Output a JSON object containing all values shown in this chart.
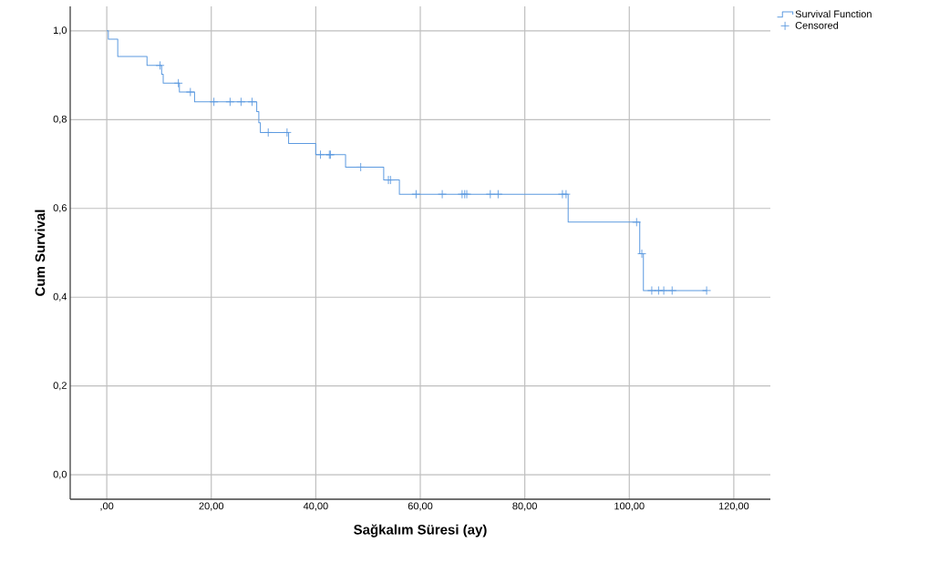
{
  "chart_data": {
    "type": "step",
    "xlabel": "Sağkalım Süresi (ay)",
    "ylabel": "Cum Survival",
    "xlim": [
      -7.0,
      127.0
    ],
    "ylim": [
      -0.055,
      1.055
    ],
    "xticks": [
      {
        "value": 0,
        "label": ",00"
      },
      {
        "value": 20,
        "label": "20,00"
      },
      {
        "value": 40,
        "label": "40,00"
      },
      {
        "value": 60,
        "label": "60,00"
      },
      {
        "value": 80,
        "label": "80,00"
      },
      {
        "value": 100,
        "label": "100,00"
      },
      {
        "value": 120,
        "label": "120,00"
      }
    ],
    "yticks": [
      {
        "value": 0,
        "label": "0,0"
      },
      {
        "value": 0.2,
        "label": "0,2"
      },
      {
        "value": 0.4,
        "label": "0,4"
      },
      {
        "value": 0.6,
        "label": "0,6"
      },
      {
        "value": 0.8,
        "label": "0,8"
      },
      {
        "value": 1.0,
        "label": "1,0"
      }
    ],
    "grid": true,
    "legend": "top right",
    "series": [
      {
        "name": "Survival Function",
        "marker": "none",
        "color": "#5c9ae0",
        "x": [
          0,
          0.3,
          2.1,
          7.7,
          10.5,
          10.8,
          13.9,
          16.8,
          28.7,
          29.1,
          29.4,
          34.8,
          40.0,
          45.7,
          53.0,
          56.0,
          88.3,
          102.0,
          102.7,
          114.8
        ],
        "values": [
          1.0,
          0.981,
          0.942,
          0.922,
          0.902,
          0.882,
          0.862,
          0.84,
          0.818,
          0.793,
          0.771,
          0.746,
          0.721,
          0.693,
          0.664,
          0.632,
          0.569,
          0.498,
          0.415,
          0.415
        ]
      },
      {
        "name": "Censored",
        "type": "scatter",
        "marker": "cross",
        "color": "#5c9ae0",
        "x": [
          10.2,
          13.7,
          16.0,
          20.5,
          23.6,
          25.7,
          27.8,
          30.9,
          34.5,
          40.9,
          42.6,
          42.8,
          48.6,
          53.9,
          54.3,
          59.2,
          64.2,
          68.0,
          68.5,
          68.9,
          73.4,
          74.9,
          87.2,
          87.9,
          101.4,
          102.4,
          104.3,
          105.6,
          106.6,
          108.2,
          114.8
        ],
        "values": [
          0.922,
          0.882,
          0.862,
          0.84,
          0.84,
          0.84,
          0.84,
          0.771,
          0.771,
          0.721,
          0.721,
          0.721,
          0.693,
          0.664,
          0.664,
          0.632,
          0.632,
          0.632,
          0.632,
          0.632,
          0.632,
          0.632,
          0.632,
          0.632,
          0.569,
          0.498,
          0.415,
          0.415,
          0.415,
          0.415,
          0.415
        ]
      }
    ]
  }
}
